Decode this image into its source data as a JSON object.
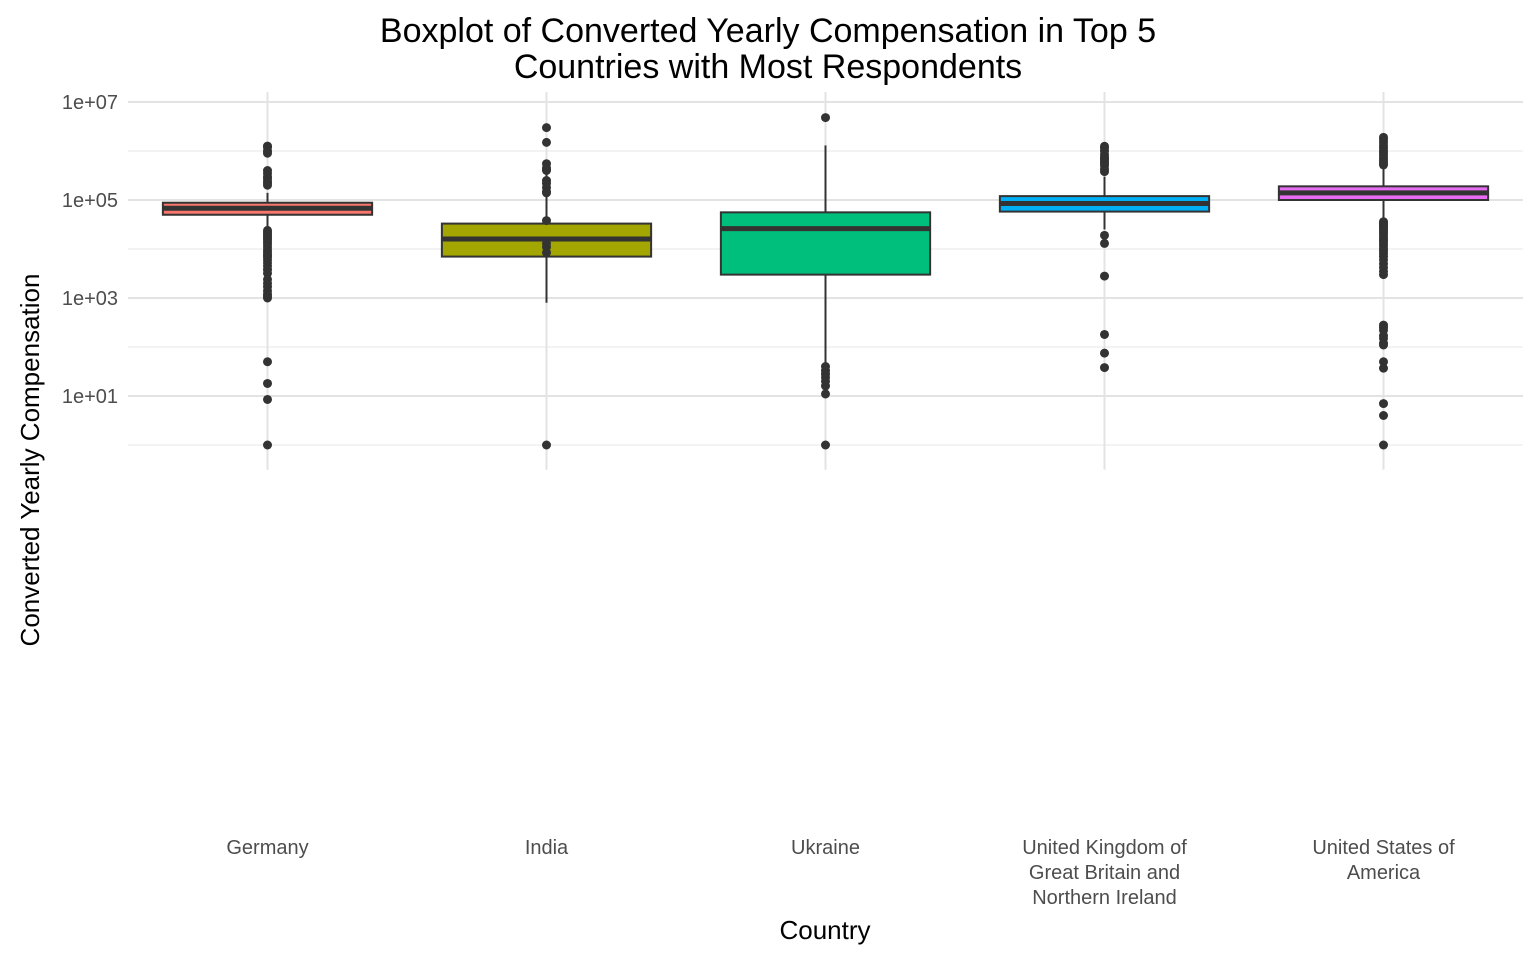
{
  "chart_data": {
    "type": "boxplot",
    "title_line1": "Boxplot of Converted Yearly Compensation in Top 5",
    "title_line2": "Countries with Most Respondents",
    "xlabel": "Country",
    "ylabel": "Converted Yearly Compensation",
    "y_scale": "log10",
    "ylim": [
      0.5,
      10000000
    ],
    "y_ticks": [
      {
        "value": 10,
        "label": "1e+01"
      },
      {
        "value": 1000,
        "label": "1e+03"
      },
      {
        "value": 100000,
        "label": "1e+05"
      },
      {
        "value": 10000000,
        "label": "1e+07"
      }
    ],
    "y_minor_gridlines": [
      1,
      100,
      10000,
      1000000
    ],
    "grid": true,
    "legend": "none",
    "groups": [
      {
        "category": "Germany",
        "label_lines": [
          "Germany"
        ],
        "color": "#F8766D",
        "q1": 50000,
        "median": 68000,
        "q3": 88000,
        "whisker_low": 28000,
        "whisker_high": 140000,
        "outliers": [
          1260000,
          1200000,
          1000000,
          900000,
          400000,
          350000,
          300000,
          270000,
          240000,
          220000,
          200000,
          24000,
          22000,
          20000,
          18500,
          17000,
          15500,
          14000,
          12500,
          11000,
          9500,
          8500,
          7500,
          6800,
          6000,
          5200,
          4500,
          3800,
          3200,
          2400,
          2000,
          1700,
          1400,
          1200,
          1100,
          1000,
          50,
          18,
          8.5,
          1
        ]
      },
      {
        "category": "India",
        "label_lines": [
          "India"
        ],
        "color": "#A3A500",
        "q1": 7000,
        "median": 16000,
        "q3": 33000,
        "whisker_low": 800,
        "whisker_high": 350000,
        "outliers": [
          3000000,
          1500000,
          450000,
          420000,
          550000,
          400000,
          250000,
          220000,
          180000,
          150000,
          140000,
          38000,
          13000,
          11000,
          8500,
          1
        ]
      },
      {
        "category": "Ukraine",
        "label_lines": [
          "Ukraine"
        ],
        "color": "#00BF7D",
        "q1": 3000,
        "median": 26000,
        "q3": 56000,
        "whisker_low": 40,
        "whisker_high": 1300000,
        "outliers": [
          4800000,
          40,
          33,
          28,
          24,
          20,
          16,
          11,
          1
        ]
      },
      {
        "category": "United Kingdom of Great Britain and Northern Ireland",
        "label_lines": [
          "United Kingdom of",
          "Great Britain and",
          "Northern Ireland"
        ],
        "color": "#00B0F6",
        "q1": 58000,
        "median": 85000,
        "q3": 120000,
        "whisker_low": 25000,
        "whisker_high": 300000,
        "outliers": [
          1250000,
          1150000,
          1000000,
          850000,
          750000,
          700000,
          650000,
          600000,
          550000,
          500000,
          430000,
          380000,
          19000,
          13000,
          2800,
          180,
          75,
          38
        ]
      },
      {
        "category": "United States of America",
        "label_lines": [
          "United States of",
          "America"
        ],
        "color": "#E76BF3",
        "q1": 100000,
        "median": 140000,
        "q3": 190000,
        "whisker_low": 40000,
        "whisker_high": 480000,
        "outliers": [
          1900000,
          1700000,
          1500000,
          1300000,
          1150000,
          1000000,
          900000,
          800000,
          700000,
          620000,
          560000,
          520000,
          36000,
          34000,
          32000,
          30000,
          28000,
          26000,
          24000,
          22000,
          20000,
          18000,
          16000,
          14500,
          13000,
          11500,
          10000,
          9000,
          8000,
          7000,
          6000,
          5000,
          4200,
          3500,
          3000,
          280,
          250,
          220,
          170,
          150,
          120,
          110,
          50,
          37,
          7,
          4,
          1
        ]
      }
    ]
  }
}
